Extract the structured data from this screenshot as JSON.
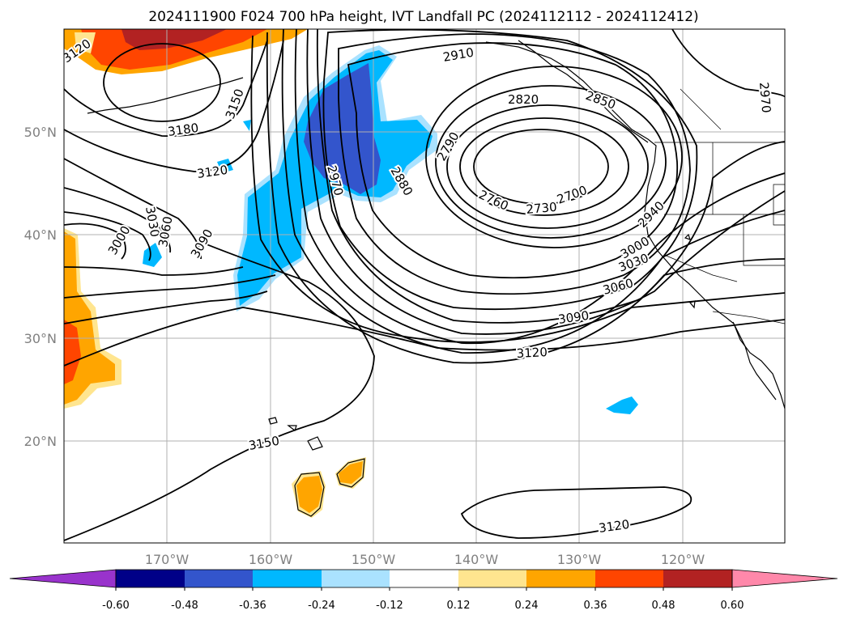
{
  "title": "2024111900 F024 700 hPa height, IVT Landfall PC (2024112112 - 2024112412)",
  "axes": {
    "lon_labels": [
      "170°W",
      "160°W",
      "150°W",
      "140°W",
      "130°W",
      "120°W"
    ],
    "lat_labels": [
      "50°N",
      "40°N",
      "30°N",
      "20°N"
    ]
  },
  "colorbar": {
    "ticks": [
      "-0.60",
      "-0.48",
      "-0.36",
      "-0.24",
      "-0.12",
      "0.12",
      "0.24",
      "0.36",
      "0.48",
      "0.60"
    ],
    "colors": [
      "#9933cc",
      "#000088",
      "#3355cc",
      "#00b8ff",
      "#aae2ff",
      "#ffffff",
      "#ffe58f",
      "#ffa500",
      "#ff4500",
      "#b22222",
      "#ff88aa"
    ]
  },
  "contour_labels": [
    "3120",
    "3180",
    "3150",
    "2910",
    "2820",
    "2850",
    "2970",
    "2790",
    "2880",
    "2970",
    "3120",
    "3000",
    "3030",
    "3060",
    "3090",
    "2760",
    "2730",
    "2700",
    "2940",
    "3000",
    "3030",
    "3060",
    "3090",
    "3120",
    "3150",
    "3120"
  ],
  "colors": {
    "grid": "#b0b0b0",
    "tick_text": "#808080"
  }
}
